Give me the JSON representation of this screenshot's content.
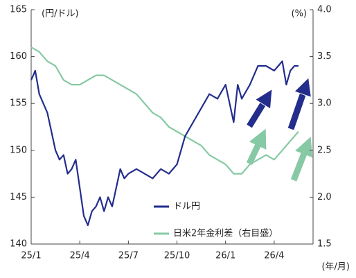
{
  "chart_data": {
    "type": "line",
    "y_label": "(円/ドル)",
    "y2_label": "(%)",
    "x_label": "(年/月)",
    "xlim": [
      0,
      17.4
    ],
    "xticks": [
      {
        "value": 0,
        "label": "25/1"
      },
      {
        "value": 3,
        "label": "25/4"
      },
      {
        "value": 6,
        "label": "25/7"
      },
      {
        "value": 9,
        "label": "25/10"
      },
      {
        "value": 12,
        "label": "26/1"
      },
      {
        "value": 15,
        "label": "26/4"
      }
    ],
    "ylim": [
      140,
      165
    ],
    "yticks": [
      140,
      145,
      150,
      155,
      160,
      165
    ],
    "y2lim": [
      1.5,
      4.0
    ],
    "y2ticks": [
      {
        "value": 1.5,
        "label": "1.5"
      },
      {
        "value": 2.0,
        "label": "2.0"
      },
      {
        "value": 2.5,
        "label": "2.5"
      },
      {
        "value": 3.0,
        "label": "3.0"
      },
      {
        "value": 3.5,
        "label": "3.5"
      },
      {
        "value": 4.0,
        "label": "4.0"
      }
    ],
    "series": [
      {
        "name": "ドル円",
        "color": "#232d8c",
        "x": [
          0,
          0.25,
          0.5,
          0.75,
          1,
          1.25,
          1.5,
          1.75,
          2,
          2.25,
          2.5,
          2.75,
          3,
          3.25,
          3.5,
          3.75,
          4,
          4.25,
          4.5,
          4.75,
          5,
          5.25,
          5.5,
          5.75,
          6,
          6.5,
          7,
          7.5,
          8,
          8.5,
          9,
          9.25,
          9.5,
          10,
          10.5,
          11,
          11.5,
          12,
          12.25,
          12.5,
          12.75,
          13,
          13.5,
          14,
          14.5,
          15,
          15.5,
          15.75,
          16,
          16.25,
          16.5
        ],
        "values": [
          157.5,
          158.5,
          156,
          155,
          154,
          152,
          150,
          149,
          149.5,
          147.5,
          148,
          149,
          146,
          143,
          142,
          143.5,
          144,
          145,
          143.5,
          145,
          144,
          146,
          148,
          147,
          147.5,
          148,
          147.5,
          147,
          148,
          147.5,
          148.5,
          150,
          151.5,
          153,
          154.5,
          156,
          155.5,
          157,
          155,
          153,
          157,
          155.5,
          157,
          159,
          159,
          158.5,
          159.5,
          157,
          158.5,
          159,
          159
        ]
      },
      {
        "name": "日米2年金利差（右目盛）",
        "color": "#86c9a4",
        "axis": "y2",
        "x": [
          0,
          0.5,
          1,
          1.5,
          2,
          2.5,
          3,
          3.5,
          4,
          4.5,
          5,
          5.5,
          6,
          6.5,
          7,
          7.5,
          8,
          8.5,
          9,
          9.5,
          10,
          10.5,
          11,
          11.5,
          12,
          12.5,
          13,
          13.5,
          14,
          14.5,
          15,
          15.5,
          16,
          16.5
        ],
        "values": [
          3.6,
          3.55,
          3.45,
          3.4,
          3.25,
          3.2,
          3.2,
          3.25,
          3.3,
          3.3,
          3.25,
          3.2,
          3.15,
          3.1,
          3.0,
          2.9,
          2.85,
          2.75,
          2.7,
          2.65,
          2.6,
          2.55,
          2.45,
          2.4,
          2.35,
          2.25,
          2.25,
          2.35,
          2.4,
          2.45,
          2.4,
          2.5,
          2.6,
          2.7
        ]
      }
    ]
  }
}
